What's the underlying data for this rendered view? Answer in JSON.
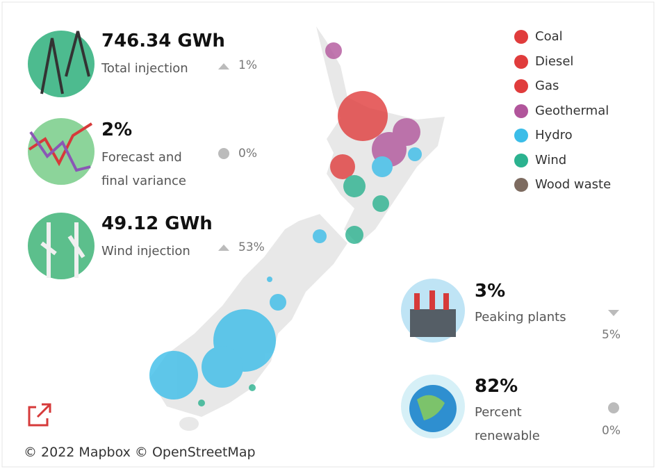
{
  "kpis": [
    {
      "value": "746.34 GWh",
      "label": "Total injection",
      "change": "1%"
    },
    {
      "value": "2%",
      "label": "Forecast and final variance",
      "change": "0%"
    },
    {
      "value": "49.12 GWh",
      "label": "Wind injection",
      "change": "53%"
    },
    {
      "value": "3%",
      "label": "Peaking plants",
      "change": "5%"
    },
    {
      "value": "82%",
      "label": "Percent renewable",
      "change": "0%"
    }
  ],
  "legend": [
    {
      "name": "Coal",
      "color": "#e03c3c"
    },
    {
      "name": "Diesel",
      "color": "#e03c3c"
    },
    {
      "name": "Gas",
      "color": "#e03c3c"
    },
    {
      "name": "Geothermal",
      "color": "#b1559b"
    },
    {
      "name": "Hydro",
      "color": "#3bbde8"
    },
    {
      "name": "Wind",
      "color": "#2bb28f"
    },
    {
      "name": "Wood waste",
      "color": "#7d6b60"
    }
  ],
  "map": {
    "attribution": "© 2022 Mapbox © OpenStreetMap"
  }
}
